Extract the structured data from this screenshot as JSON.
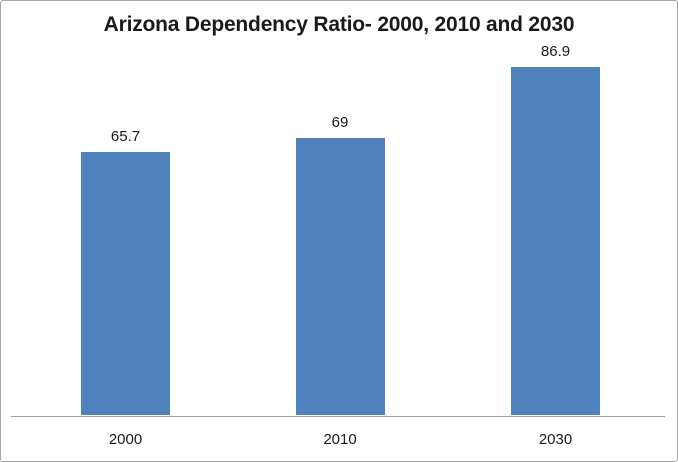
{
  "chart_data": {
    "type": "bar",
    "title": "Arizona Dependency Ratio- 2000, 2010 and 2030",
    "categories": [
      "2000",
      "2010",
      "2030"
    ],
    "values": [
      65.7,
      69,
      86.9
    ],
    "data_labels": [
      "65.7",
      "69",
      "86.9"
    ],
    "xlabel": "",
    "ylabel": "",
    "ylim": [
      0,
      92
    ],
    "grid": false,
    "legend": false,
    "y_axis_visible": false,
    "bar_color": "#4f81bd",
    "axis_line_color": "#9d9d9d",
    "text_color": "#1a1a1a"
  }
}
